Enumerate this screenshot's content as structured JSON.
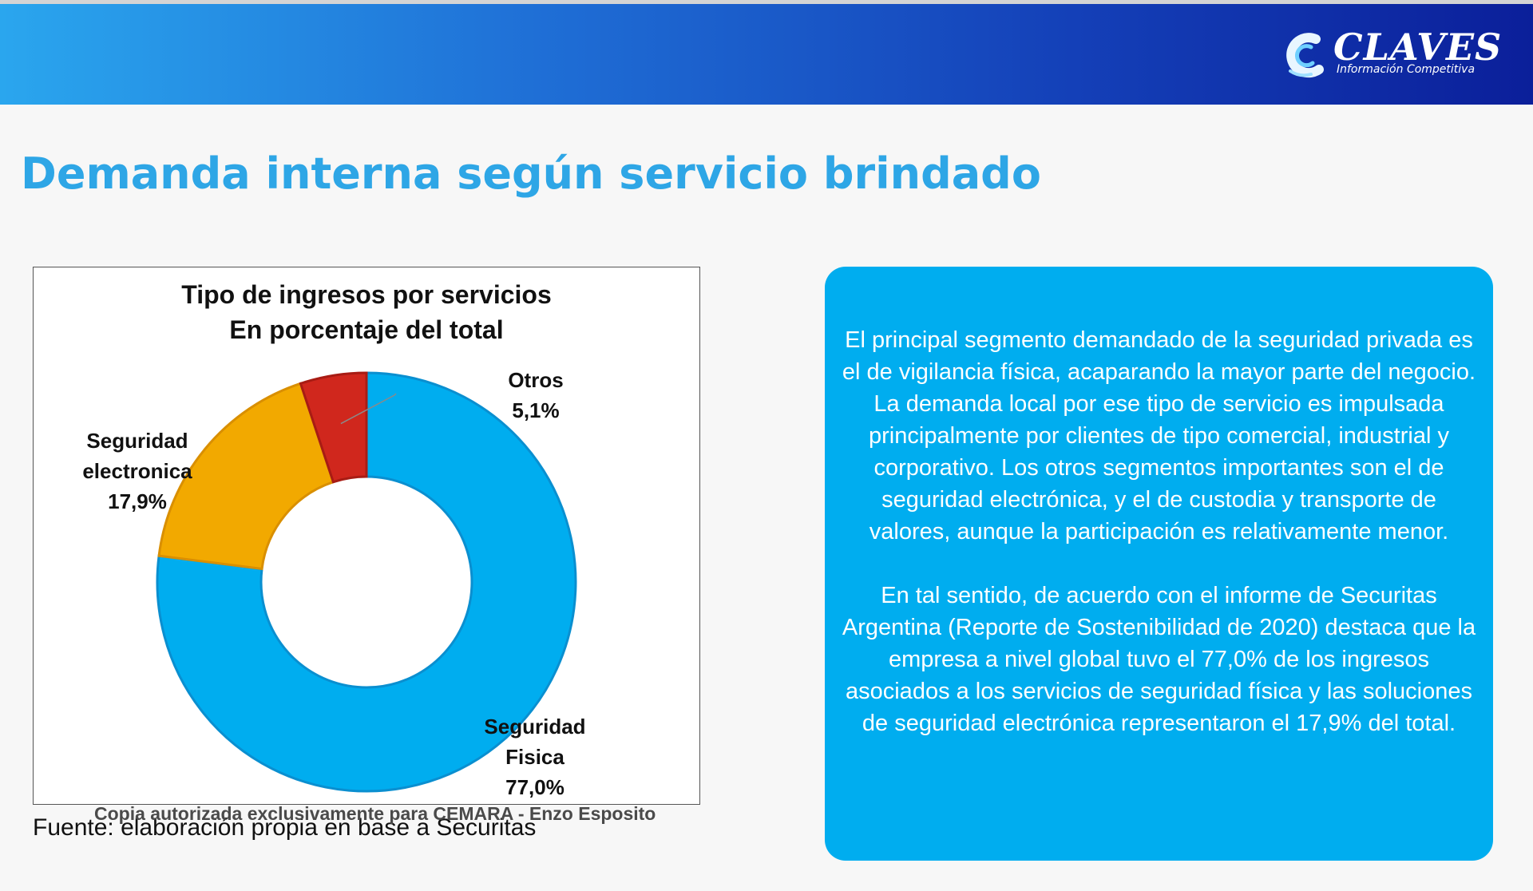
{
  "brand": {
    "name": "CLAVES",
    "tagline": "Información Competitiva",
    "logo_icon": "claves-c-icon"
  },
  "page": {
    "title": "Demanda interna según servicio brindado"
  },
  "colors": {
    "title": "#2ea6e6",
    "panel": "#00adef",
    "header_start": "#2aa6ee",
    "header_end": "#0b1f9a"
  },
  "chart_data": {
    "type": "pie",
    "variant": "donut",
    "title": "Tipo de ingresos por servicios",
    "subtitle": "En porcentaje del total",
    "slices": [
      {
        "label_lines": [
          "Seguridad",
          "Fisica"
        ],
        "value": 77.0,
        "value_label": "77,0%",
        "color": "#00adef"
      },
      {
        "label_lines": [
          "Seguridad",
          "electronica"
        ],
        "value": 17.9,
        "value_label": "17,9%",
        "color": "#f2a900"
      },
      {
        "label_lines": [
          "Otros"
        ],
        "value": 5.1,
        "value_label": "5,1%",
        "color": "#d0271d"
      }
    ],
    "legend": "none"
  },
  "source": "Fuente: elaboración propia en base a Securitas",
  "watermark": "Copia autorizada exclusivamente para CEMARA - Enzo Esposito",
  "panel": {
    "paragraphs": [
      "El principal segmento demandado de la seguridad privada es el de vigilancia física, acaparando la mayor parte del negocio. La demanda local por ese tipo de servicio es impulsada principalmente por clientes de tipo comercial, industrial y corporativo. Los otros segmentos importantes son el de seguridad electrónica, y el de custodia y transporte de valores, aunque la participación es relativamente menor.",
      "En tal sentido, de acuerdo con el informe de Securitas Argentina (Reporte de Sostenibilidad de 2020) destaca que la empresa a nivel global tuvo el 77,0% de los ingresos asociados a los servicios de seguridad física y las soluciones de seguridad electrónica representaron el 17,9% del total."
    ]
  }
}
